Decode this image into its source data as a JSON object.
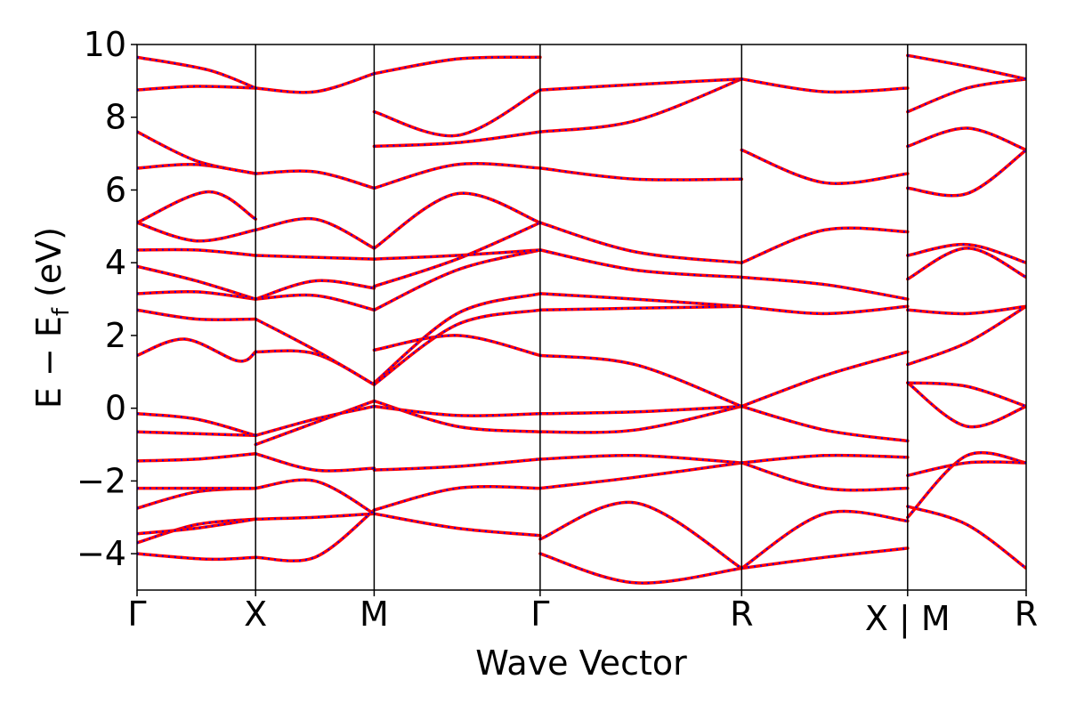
{
  "chart_data": {
    "type": "line",
    "title": "",
    "xlabel": "Wave Vector",
    "ylabel_parts": {
      "main": "E − E",
      "sub": "f",
      "unit": " (eV)"
    },
    "ylim": [
      -5,
      10
    ],
    "yticks": [
      -4,
      -2,
      0,
      2,
      4,
      6,
      8,
      10
    ],
    "ytick_labels": [
      "−4",
      "−2",
      "0",
      "2",
      "4",
      "6",
      "8",
      "10"
    ],
    "kpath_positions": [
      0,
      1,
      2,
      3.4,
      5.1,
      6.5,
      7.5
    ],
    "kpoint_labels": [
      "Γ",
      "X",
      "M",
      "Γ",
      "R",
      "X | M",
      "R"
    ],
    "series_colors": {
      "solid": "#ff0000",
      "dashed": "#0000ff"
    },
    "grid": false,
    "bands": [
      {
        "x": [
          0,
          0.6,
          1
        ],
        "y": [
          -4.0,
          -4.15,
          -4.1
        ]
      },
      {
        "x": [
          0,
          0.5,
          1
        ],
        "y": [
          -3.7,
          -3.2,
          -3.05
        ]
      },
      {
        "x": [
          0,
          0.5,
          1
        ],
        "y": [
          -3.45,
          -3.3,
          -3.05
        ]
      },
      {
        "x": [
          0,
          0.5,
          1
        ],
        "y": [
          -2.75,
          -2.3,
          -2.2
        ]
      },
      {
        "x": [
          0,
          0.5,
          1
        ],
        "y": [
          -2.2,
          -2.2,
          -2.2
        ]
      },
      {
        "x": [
          0,
          0.5,
          1
        ],
        "y": [
          -1.45,
          -1.4,
          -1.25
        ]
      },
      {
        "x": [
          0,
          0.5,
          1
        ],
        "y": [
          -0.65,
          -0.7,
          -0.75
        ]
      },
      {
        "x": [
          0,
          0.5,
          1
        ],
        "y": [
          -0.15,
          -0.3,
          -0.75
        ]
      },
      {
        "x": [
          0,
          0.4,
          0.85,
          1
        ],
        "y": [
          1.45,
          1.9,
          1.3,
          1.55
        ]
      },
      {
        "x": [
          0,
          0.5,
          1
        ],
        "y": [
          2.7,
          2.45,
          2.45
        ]
      },
      {
        "x": [
          0,
          0.5,
          1
        ],
        "y": [
          3.15,
          3.2,
          3.0
        ]
      },
      {
        "x": [
          0,
          0.5,
          1
        ],
        "y": [
          3.9,
          3.5,
          3.0
        ]
      },
      {
        "x": [
          0,
          0.5,
          1
        ],
        "y": [
          4.35,
          4.35,
          4.2
        ]
      },
      {
        "x": [
          0,
          0.5,
          1
        ],
        "y": [
          5.1,
          4.6,
          4.9
        ]
      },
      {
        "x": [
          0,
          0.6,
          1
        ],
        "y": [
          5.1,
          5.95,
          5.2
        ]
      },
      {
        "x": [
          0,
          0.5,
          1
        ],
        "y": [
          6.6,
          6.7,
          6.45
        ]
      },
      {
        "x": [
          0,
          0.5,
          1
        ],
        "y": [
          7.6,
          6.8,
          6.45
        ]
      },
      {
        "x": [
          0,
          0.5,
          1
        ],
        "y": [
          8.75,
          8.85,
          8.8
        ]
      },
      {
        "x": [
          0,
          0.6,
          1
        ],
        "y": [
          9.65,
          9.3,
          8.8
        ]
      },
      {
        "x": [
          1,
          1.5,
          2
        ],
        "y": [
          -4.1,
          -4.1,
          -2.8
        ]
      },
      {
        "x": [
          1,
          1.5,
          2
        ],
        "y": [
          -3.05,
          -3.0,
          -2.9
        ]
      },
      {
        "x": [
          1,
          1.5,
          2
        ],
        "y": [
          -2.2,
          -2.0,
          -2.9
        ]
      },
      {
        "x": [
          1,
          1.5,
          2
        ],
        "y": [
          -1.25,
          -1.7,
          -1.65
        ]
      },
      {
        "x": [
          1,
          1.5,
          2
        ],
        "y": [
          -1.0,
          -0.4,
          0.2
        ]
      },
      {
        "x": [
          1,
          1.5,
          2
        ],
        "y": [
          -0.75,
          -0.3,
          0.05
        ]
      },
      {
        "x": [
          1,
          1.5,
          2
        ],
        "y": [
          1.55,
          1.5,
          0.65
        ]
      },
      {
        "x": [
          1,
          1.5,
          2
        ],
        "y": [
          2.45,
          1.6,
          0.65
        ]
      },
      {
        "x": [
          1,
          1.5,
          2
        ],
        "y": [
          3.0,
          3.1,
          2.7
        ]
      },
      {
        "x": [
          1,
          1.5,
          2
        ],
        "y": [
          3.0,
          3.5,
          3.3
        ]
      },
      {
        "x": [
          1,
          1.5,
          2
        ],
        "y": [
          4.2,
          4.15,
          4.1
        ]
      },
      {
        "x": [
          1,
          1.5,
          2
        ],
        "y": [
          4.9,
          5.2,
          4.4
        ]
      },
      {
        "x": [
          1,
          1.5,
          2
        ],
        "y": [
          6.45,
          6.5,
          6.05
        ]
      },
      {
        "x": [
          1,
          1.5,
          2
        ],
        "y": [
          8.8,
          8.7,
          9.2
        ]
      },
      {
        "x": [
          2,
          2.7,
          3.4
        ],
        "y": [
          -2.9,
          -3.3,
          -3.5
        ]
      },
      {
        "x": [
          2,
          2.7,
          3.4
        ],
        "y": [
          -2.8,
          -2.2,
          -2.2
        ]
      },
      {
        "x": [
          2,
          2.7,
          3.4
        ],
        "y": [
          -1.7,
          -1.6,
          -1.4
        ]
      },
      {
        "x": [
          2,
          2.7,
          3.4
        ],
        "y": [
          0.2,
          -0.5,
          -0.65
        ]
      },
      {
        "x": [
          2,
          2.7,
          3.4
        ],
        "y": [
          0.05,
          -0.2,
          -0.15
        ]
      },
      {
        "x": [
          2,
          2.7,
          3.4
        ],
        "y": [
          0.7,
          2.6,
          3.15
        ]
      },
      {
        "x": [
          2,
          2.7,
          3.4
        ],
        "y": [
          0.65,
          2.3,
          2.7
        ]
      },
      {
        "x": [
          2,
          2.7,
          3.4
        ],
        "y": [
          1.6,
          2.0,
          1.45
        ]
      },
      {
        "x": [
          2,
          2.7,
          3.4
        ],
        "y": [
          2.7,
          3.8,
          4.35
        ]
      },
      {
        "x": [
          2,
          2.7,
          3.4
        ],
        "y": [
          3.35,
          4.1,
          5.1
        ]
      },
      {
        "x": [
          2,
          2.7,
          3.4
        ],
        "y": [
          4.1,
          4.2,
          4.35
        ]
      },
      {
        "x": [
          2,
          2.7,
          3.4
        ],
        "y": [
          4.4,
          5.9,
          5.1
        ]
      },
      {
        "x": [
          2,
          2.7,
          3.4
        ],
        "y": [
          6.05,
          6.7,
          6.6
        ]
      },
      {
        "x": [
          2,
          2.7,
          3.4
        ],
        "y": [
          7.2,
          7.3,
          7.6
        ]
      },
      {
        "x": [
          2,
          2.7,
          3.4
        ],
        "y": [
          8.15,
          7.5,
          8.75
        ]
      },
      {
        "x": [
          2,
          2.7,
          3.4
        ],
        "y": [
          9.2,
          9.6,
          9.65
        ]
      },
      {
        "x": [
          3.4,
          4.2,
          5.1
        ],
        "y": [
          -4.0,
          -4.8,
          -4.4
        ]
      },
      {
        "x": [
          3.4,
          4.2,
          5.1
        ],
        "y": [
          -3.6,
          -2.6,
          -4.4
        ]
      },
      {
        "x": [
          3.4,
          4.2,
          5.1
        ],
        "y": [
          -2.2,
          -1.9,
          -1.5
        ]
      },
      {
        "x": [
          3.4,
          4.2,
          5.1
        ],
        "y": [
          -1.4,
          -1.3,
          -1.5
        ]
      },
      {
        "x": [
          3.4,
          4.2,
          5.1
        ],
        "y": [
          -0.65,
          -0.6,
          0.05
        ]
      },
      {
        "x": [
          3.4,
          4.2,
          5.1
        ],
        "y": [
          -0.15,
          -0.1,
          0.05
        ]
      },
      {
        "x": [
          3.4,
          4.2,
          5.1
        ],
        "y": [
          1.45,
          1.2,
          0.05
        ]
      },
      {
        "x": [
          3.4,
          4.2,
          5.1
        ],
        "y": [
          2.7,
          2.75,
          2.8
        ]
      },
      {
        "x": [
          3.4,
          4.2,
          5.1
        ],
        "y": [
          3.15,
          3.0,
          2.8
        ]
      },
      {
        "x": [
          3.4,
          4.2,
          5.1
        ],
        "y": [
          4.35,
          3.8,
          3.6
        ]
      },
      {
        "x": [
          3.4,
          4.2,
          5.1
        ],
        "y": [
          5.1,
          4.3,
          4.0
        ]
      },
      {
        "x": [
          3.4,
          4.2,
          5.1
        ],
        "y": [
          6.6,
          6.3,
          6.3
        ]
      },
      {
        "x": [
          3.4,
          4.2,
          5.1
        ],
        "y": [
          7.6,
          7.9,
          9.05
        ]
      },
      {
        "x": [
          3.4,
          4.2,
          5.1
        ],
        "y": [
          8.75,
          8.9,
          9.05
        ]
      },
      {
        "x": [
          5.1,
          5.8,
          6.5
        ],
        "y": [
          -4.4,
          -4.1,
          -3.85
        ]
      },
      {
        "x": [
          5.1,
          5.8,
          6.5
        ],
        "y": [
          -4.4,
          -2.9,
          -3.1
        ]
      },
      {
        "x": [
          5.1,
          5.8,
          6.5
        ],
        "y": [
          -1.5,
          -2.2,
          -2.2
        ]
      },
      {
        "x": [
          5.1,
          5.8,
          6.5
        ],
        "y": [
          -1.5,
          -1.3,
          -1.35
        ]
      },
      {
        "x": [
          5.1,
          5.8,
          6.5
        ],
        "y": [
          0.05,
          -0.6,
          -0.9
        ]
      },
      {
        "x": [
          5.1,
          5.8,
          6.5
        ],
        "y": [
          0.05,
          0.9,
          1.55
        ]
      },
      {
        "x": [
          5.1,
          5.8,
          6.5
        ],
        "y": [
          2.8,
          2.6,
          2.8
        ]
      },
      {
        "x": [
          5.1,
          5.8,
          6.5
        ],
        "y": [
          3.6,
          3.4,
          3.0
        ]
      },
      {
        "x": [
          5.1,
          5.8,
          6.5
        ],
        "y": [
          4.0,
          4.9,
          4.85
        ]
      },
      {
        "x": [
          5.1,
          5.8,
          6.5
        ],
        "y": [
          7.1,
          6.2,
          6.45
        ]
      },
      {
        "x": [
          5.1,
          5.8,
          6.5
        ],
        "y": [
          9.05,
          8.7,
          8.8
        ]
      },
      {
        "x": [
          6.5,
          7.0,
          7.5
        ],
        "y": [
          -2.7,
          -3.2,
          -4.4
        ]
      },
      {
        "x": [
          6.5,
          7.0,
          7.5
        ],
        "y": [
          -3.0,
          -1.3,
          -1.5
        ]
      },
      {
        "x": [
          6.5,
          7.0,
          7.5
        ],
        "y": [
          -1.85,
          -1.5,
          -1.5
        ]
      },
      {
        "x": [
          6.5,
          7.0,
          7.5
        ],
        "y": [
          0.7,
          -0.5,
          0.05
        ]
      },
      {
        "x": [
          6.5,
          7.0,
          7.5
        ],
        "y": [
          0.7,
          0.6,
          0.05
        ]
      },
      {
        "x": [
          6.5,
          7.0,
          7.5
        ],
        "y": [
          1.2,
          1.8,
          2.8
        ]
      },
      {
        "x": [
          6.5,
          7.0,
          7.5
        ],
        "y": [
          2.7,
          2.6,
          2.8
        ]
      },
      {
        "x": [
          6.5,
          7.0,
          7.5
        ],
        "y": [
          3.55,
          4.4,
          3.6
        ]
      },
      {
        "x": [
          6.5,
          7.0,
          7.5
        ],
        "y": [
          4.2,
          4.5,
          4.0
        ]
      },
      {
        "x": [
          6.5,
          7.0,
          7.5
        ],
        "y": [
          6.05,
          5.9,
          7.1
        ]
      },
      {
        "x": [
          6.5,
          7.0,
          7.5
        ],
        "y": [
          7.2,
          7.7,
          7.1
        ]
      },
      {
        "x": [
          6.5,
          7.0,
          7.5
        ],
        "y": [
          8.15,
          8.8,
          9.05
        ]
      },
      {
        "x": [
          6.5,
          7.0,
          7.5
        ],
        "y": [
          9.7,
          9.4,
          9.05
        ]
      }
    ]
  }
}
